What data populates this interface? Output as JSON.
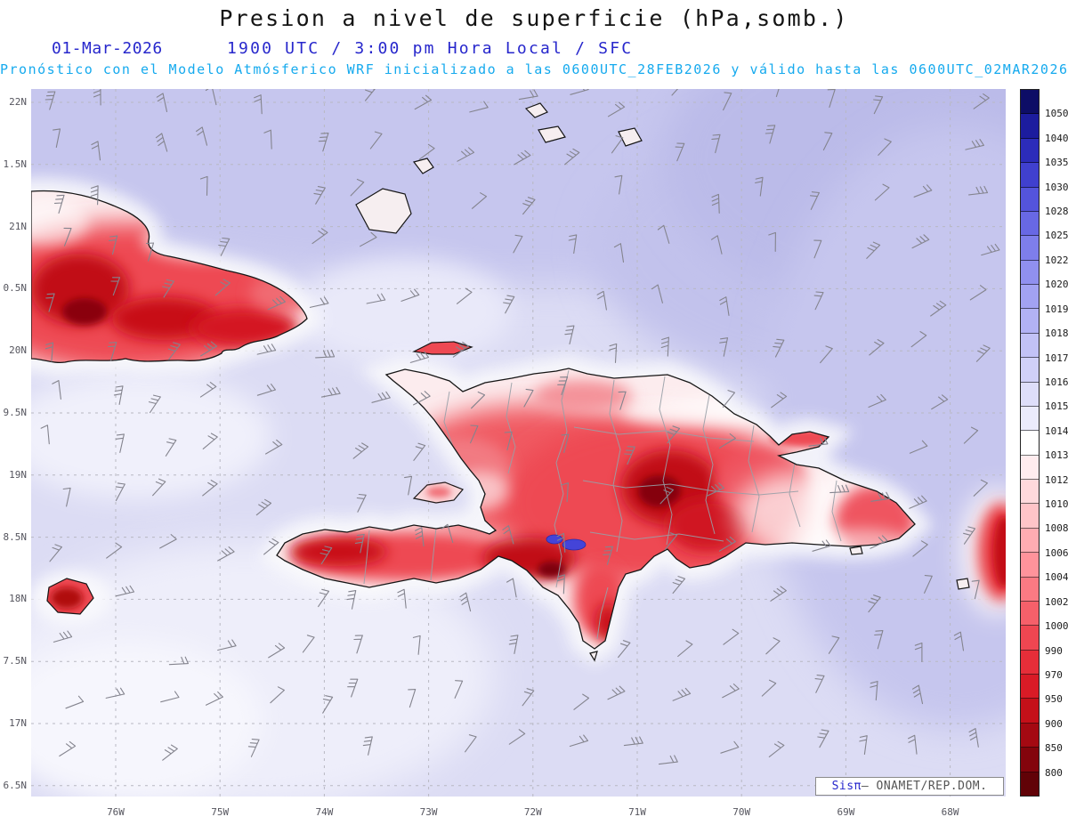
{
  "header": {
    "title": "Presion a nivel de superficie (hPa,somb.)",
    "date": "01-Mar-2026",
    "time_line": "1900 UTC / 3:00 pm Hora Local / SFC",
    "forecast_line": "Pronóstico con el Modelo Atmósferico WRF inicializado a las 0600UTC_28FEB2026 y válido hasta las  0600UTC_02MAR2026"
  },
  "map": {
    "lat_labels": [
      "22N",
      "1.5N",
      "21N",
      "0.5N",
      "20N",
      "9.5N",
      "19N",
      "8.5N",
      "18N",
      "7.5N",
      "17N",
      "6.5N"
    ],
    "lon_labels": [
      "76W",
      "75W",
      "74W",
      "73W",
      "72W",
      "71W",
      "70W",
      "69W",
      "68W"
    ],
    "grid_color": "#b8b8c2",
    "ocean_base_color": "#dcdcf4",
    "high_pressure_color": "#c6c6ee",
    "coast_color": "#151515",
    "admin_border_color": "#98a0a8",
    "lake_color": "#4444d8",
    "wind_barb_color": "#84848e"
  },
  "colorbar": {
    "tick_labels": [
      "1050",
      "1040",
      "1035",
      "1030",
      "1028",
      "1025",
      "1022",
      "1020",
      "1019",
      "1018",
      "1017",
      "1016",
      "1015",
      "1014",
      "1013",
      "1012",
      "1010",
      "1008",
      "1006",
      "1004",
      "1002",
      "1000",
      "990",
      "970",
      "950",
      "900",
      "850",
      "800"
    ],
    "cell_colors": [
      "#0d0d66",
      "#1c1c9e",
      "#2c2cba",
      "#4040cf",
      "#5454dc",
      "#6868e4",
      "#7e7eeb",
      "#9090ef",
      "#a2a2f2",
      "#b2b2f4",
      "#c2c2f6",
      "#d0d0f8",
      "#dedefa",
      "#ebebfc",
      "#ffffff",
      "#ffecee",
      "#ffd9dc",
      "#ffc4c8",
      "#ffacb2",
      "#ff939b",
      "#fb7a83",
      "#f6606a",
      "#ef4651",
      "#e62e39",
      "#d91b26",
      "#c41019",
      "#a40912",
      "#83040c",
      "#610207"
    ]
  },
  "credit": {
    "brand": "Sisπ",
    "rest": "— ONAMET/REP.DOM."
  }
}
